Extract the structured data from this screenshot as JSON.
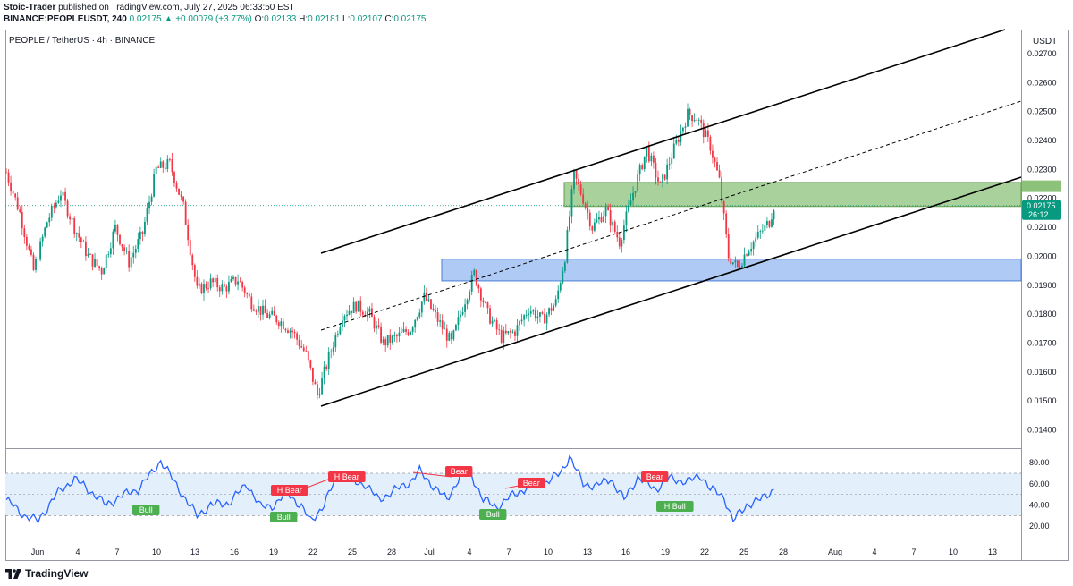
{
  "header": {
    "publisher": "Stoic-Trader",
    "published_text": "published on TradingView.com, July 27, 2025 06:33:50 EST",
    "symbol_line": "BINANCE:PEOPLEUSDT, 240",
    "last": "0.02175",
    "change": "▲ +0.00079 (+3.77%)",
    "o_label": "O:",
    "o_value": "0.02133",
    "h_label": "H:",
    "h_value": "0.02181",
    "l_label": "L:",
    "l_value": "0.02107",
    "c_label": "C:",
    "c_value": "0.02175"
  },
  "symbol_title": "PEOPLE / TetherUS · 4h · BINANCE",
  "currency": "USDT",
  "brand": "TradingView",
  "colors": {
    "up": "#089981",
    "down": "#f23645",
    "rsi": "#2962ff",
    "demand_zone": "#7aa6ee",
    "supply_zone": "#8cc27a",
    "bear": "#f23645",
    "bull": "#4caf50"
  },
  "chart_data": {
    "type": "candlestick",
    "title": "PEOPLE / TetherUS · 4h · BINANCE",
    "ylim": [
      0.0134,
      0.0278
    ],
    "y_ticks": [
      "0.02700",
      "0.02600",
      "0.02500",
      "0.02400",
      "0.02300",
      "0.02200",
      "0.02100",
      "0.02000",
      "0.01900",
      "0.01800",
      "0.01700",
      "0.01600",
      "0.01500",
      "0.01400"
    ],
    "x_ticks": [
      "Jun",
      "4",
      "7",
      "10",
      "13",
      "16",
      "19",
      "22",
      "25",
      "28",
      "Jul",
      "4",
      "7",
      "10",
      "13",
      "16",
      "19",
      "22",
      "25",
      "28",
      "Aug",
      "4",
      "7",
      "10",
      "13"
    ],
    "last_price": "0.02175",
    "countdown": "26:12",
    "price_anchors": [
      [
        0,
        0.0229
      ],
      [
        6,
        0.0215
      ],
      [
        12,
        0.0195
      ],
      [
        18,
        0.0212
      ],
      [
        24,
        0.0222
      ],
      [
        30,
        0.021
      ],
      [
        36,
        0.02
      ],
      [
        42,
        0.0195
      ],
      [
        48,
        0.021
      ],
      [
        54,
        0.0198
      ],
      [
        60,
        0.0208
      ],
      [
        66,
        0.023
      ],
      [
        72,
        0.0232
      ],
      [
        78,
        0.0217
      ],
      [
        84,
        0.0188
      ],
      [
        90,
        0.0191
      ],
      [
        96,
        0.0189
      ],
      [
        102,
        0.0192
      ],
      [
        108,
        0.0184
      ],
      [
        114,
        0.018
      ],
      [
        120,
        0.0178
      ],
      [
        126,
        0.0174
      ],
      [
        132,
        0.0166
      ],
      [
        137,
        0.0152
      ],
      [
        142,
        0.0165
      ],
      [
        148,
        0.018
      ],
      [
        154,
        0.0183
      ],
      [
        160,
        0.018
      ],
      [
        166,
        0.017
      ],
      [
        172,
        0.0172
      ],
      [
        178,
        0.0175
      ],
      [
        184,
        0.0186
      ],
      [
        190,
        0.0178
      ],
      [
        196,
        0.017
      ],
      [
        202,
        0.0185
      ],
      [
        206,
        0.0194
      ],
      [
        212,
        0.018
      ],
      [
        218,
        0.0172
      ],
      [
        224,
        0.0174
      ],
      [
        230,
        0.0182
      ],
      [
        236,
        0.0178
      ],
      [
        242,
        0.0184
      ],
      [
        246,
        0.02
      ],
      [
        250,
        0.0228
      ],
      [
        254,
        0.022
      ],
      [
        258,
        0.021
      ],
      [
        264,
        0.0216
      ],
      [
        270,
        0.0205
      ],
      [
        276,
        0.0222
      ],
      [
        282,
        0.0237
      ],
      [
        288,
        0.0224
      ],
      [
        294,
        0.0237
      ],
      [
        300,
        0.0249
      ],
      [
        304,
        0.0248
      ],
      [
        310,
        0.0238
      ],
      [
        314,
        0.0226
      ],
      [
        318,
        0.02
      ],
      [
        322,
        0.0196
      ],
      [
        326,
        0.0202
      ],
      [
        332,
        0.0208
      ],
      [
        336,
        0.0212
      ],
      [
        338,
        0.02175
      ]
    ],
    "rsi": {
      "ylim": [
        10,
        92
      ],
      "y_ticks": [
        "80.00",
        "60.00",
        "40.00",
        "20.00"
      ],
      "band": [
        30,
        70
      ]
    },
    "annotations": {
      "channel_upper": [
        [
          0.0202,
          0.0278
        ]
      ],
      "labels": [
        "H Bear",
        "H Bear",
        "Bear",
        "Bear",
        "Bear",
        "Bull",
        "Bull",
        "Bull",
        "H Bull"
      ]
    }
  }
}
